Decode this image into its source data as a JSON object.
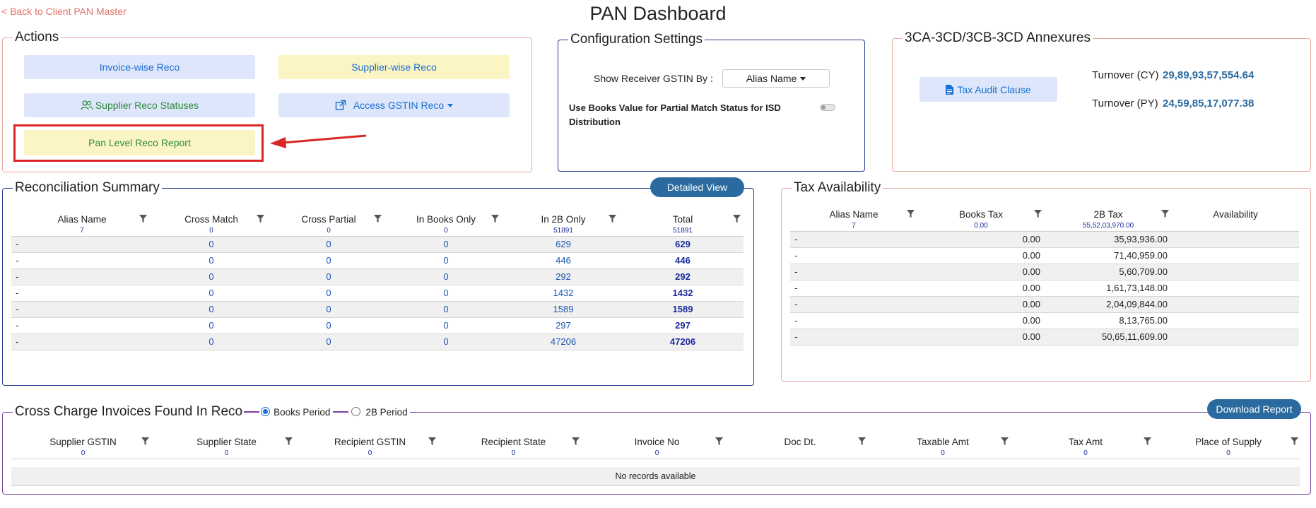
{
  "header": {
    "back_label": "< Back to Client PAN Master",
    "title": "PAN Dashboard"
  },
  "actions": {
    "legend": "Actions",
    "invoice_reco": "Invoice-wise Reco",
    "supplier_reco": "Supplier-wise Reco",
    "supplier_statuses": "Supplier Reco Statuses",
    "access_gstin": "Access GSTIN Reco",
    "pan_level_report": "Pan Level Reco Report"
  },
  "config": {
    "legend": "Configuration Settings",
    "show_receiver_label": "Show Receiver GSTIN By :",
    "show_receiver_value": "Alias Name",
    "use_books_label": "Use Books Value for Partial Match Status for ISD Distribution"
  },
  "annexures": {
    "legend": "3CA-3CD/3CB-3CD Annexures",
    "tax_audit_btn": "Tax Audit Clause",
    "turnover_cy_label": "Turnover (CY)",
    "turnover_cy_value": "29,89,93,57,554.64",
    "turnover_py_label": "Turnover (PY)",
    "turnover_py_value": "24,59,85,17,077.38"
  },
  "reco_summary": {
    "legend": "Reconciliation Summary",
    "detailed_view": "Detailed View",
    "columns": [
      "Alias Name",
      "Cross Match",
      "Cross Partial",
      "In Books Only",
      "In 2B Only",
      "Total"
    ],
    "counts": [
      "7",
      "0",
      "0",
      "0",
      "51891",
      "51891"
    ],
    "rows": [
      [
        "-",
        "0",
        "0",
        "0",
        "629",
        "629"
      ],
      [
        "-",
        "0",
        "0",
        "0",
        "446",
        "446"
      ],
      [
        "-",
        "0",
        "0",
        "0",
        "292",
        "292"
      ],
      [
        "-",
        "0",
        "0",
        "0",
        "1432",
        "1432"
      ],
      [
        "-",
        "0",
        "0",
        "0",
        "1589",
        "1589"
      ],
      [
        "-",
        "0",
        "0",
        "0",
        "297",
        "297"
      ],
      [
        "-",
        "0",
        "0",
        "0",
        "47206",
        "47206"
      ]
    ]
  },
  "tax_availability": {
    "legend": "Tax Availability",
    "columns": [
      "Alias Name",
      "Books Tax",
      "2B Tax",
      "Availability"
    ],
    "counts": [
      "7",
      "0.00",
      "55,52,03,970.00",
      ""
    ],
    "rows": [
      [
        "-",
        "0.00",
        "35,93,936.00",
        ""
      ],
      [
        "-",
        "0.00",
        "71,40,959.00",
        ""
      ],
      [
        "-",
        "0.00",
        "5,60,709.00",
        ""
      ],
      [
        "-",
        "0.00",
        "1,61,73,148.00",
        ""
      ],
      [
        "-",
        "0.00",
        "2,04,09,844.00",
        ""
      ],
      [
        "-",
        "0.00",
        "8,13,765.00",
        ""
      ],
      [
        "-",
        "0.00",
        "50,65,11,609.00",
        ""
      ]
    ]
  },
  "cross_charge": {
    "legend": "Cross Charge Invoices Found In Reco",
    "radio_books": "Books Period",
    "radio_2b": "2B Period",
    "download_btn": "Download Report",
    "columns": [
      "Supplier GSTIN",
      "Supplier State",
      "Recipient GSTIN",
      "Recipient State",
      "Invoice No",
      "Doc Dt.",
      "Taxable Amt",
      "Tax Amt",
      "Place of Supply"
    ],
    "counts": [
      "0",
      "0",
      "0",
      "0",
      "0",
      "",
      "0",
      "0",
      "0"
    ],
    "empty_text": "No records available"
  },
  "colors": {
    "accent_blue": "#1a6fd1",
    "navy_count": "#1a2a9c",
    "pill_bg": "#2a6a9e",
    "highlight_red": "#dc2626"
  }
}
